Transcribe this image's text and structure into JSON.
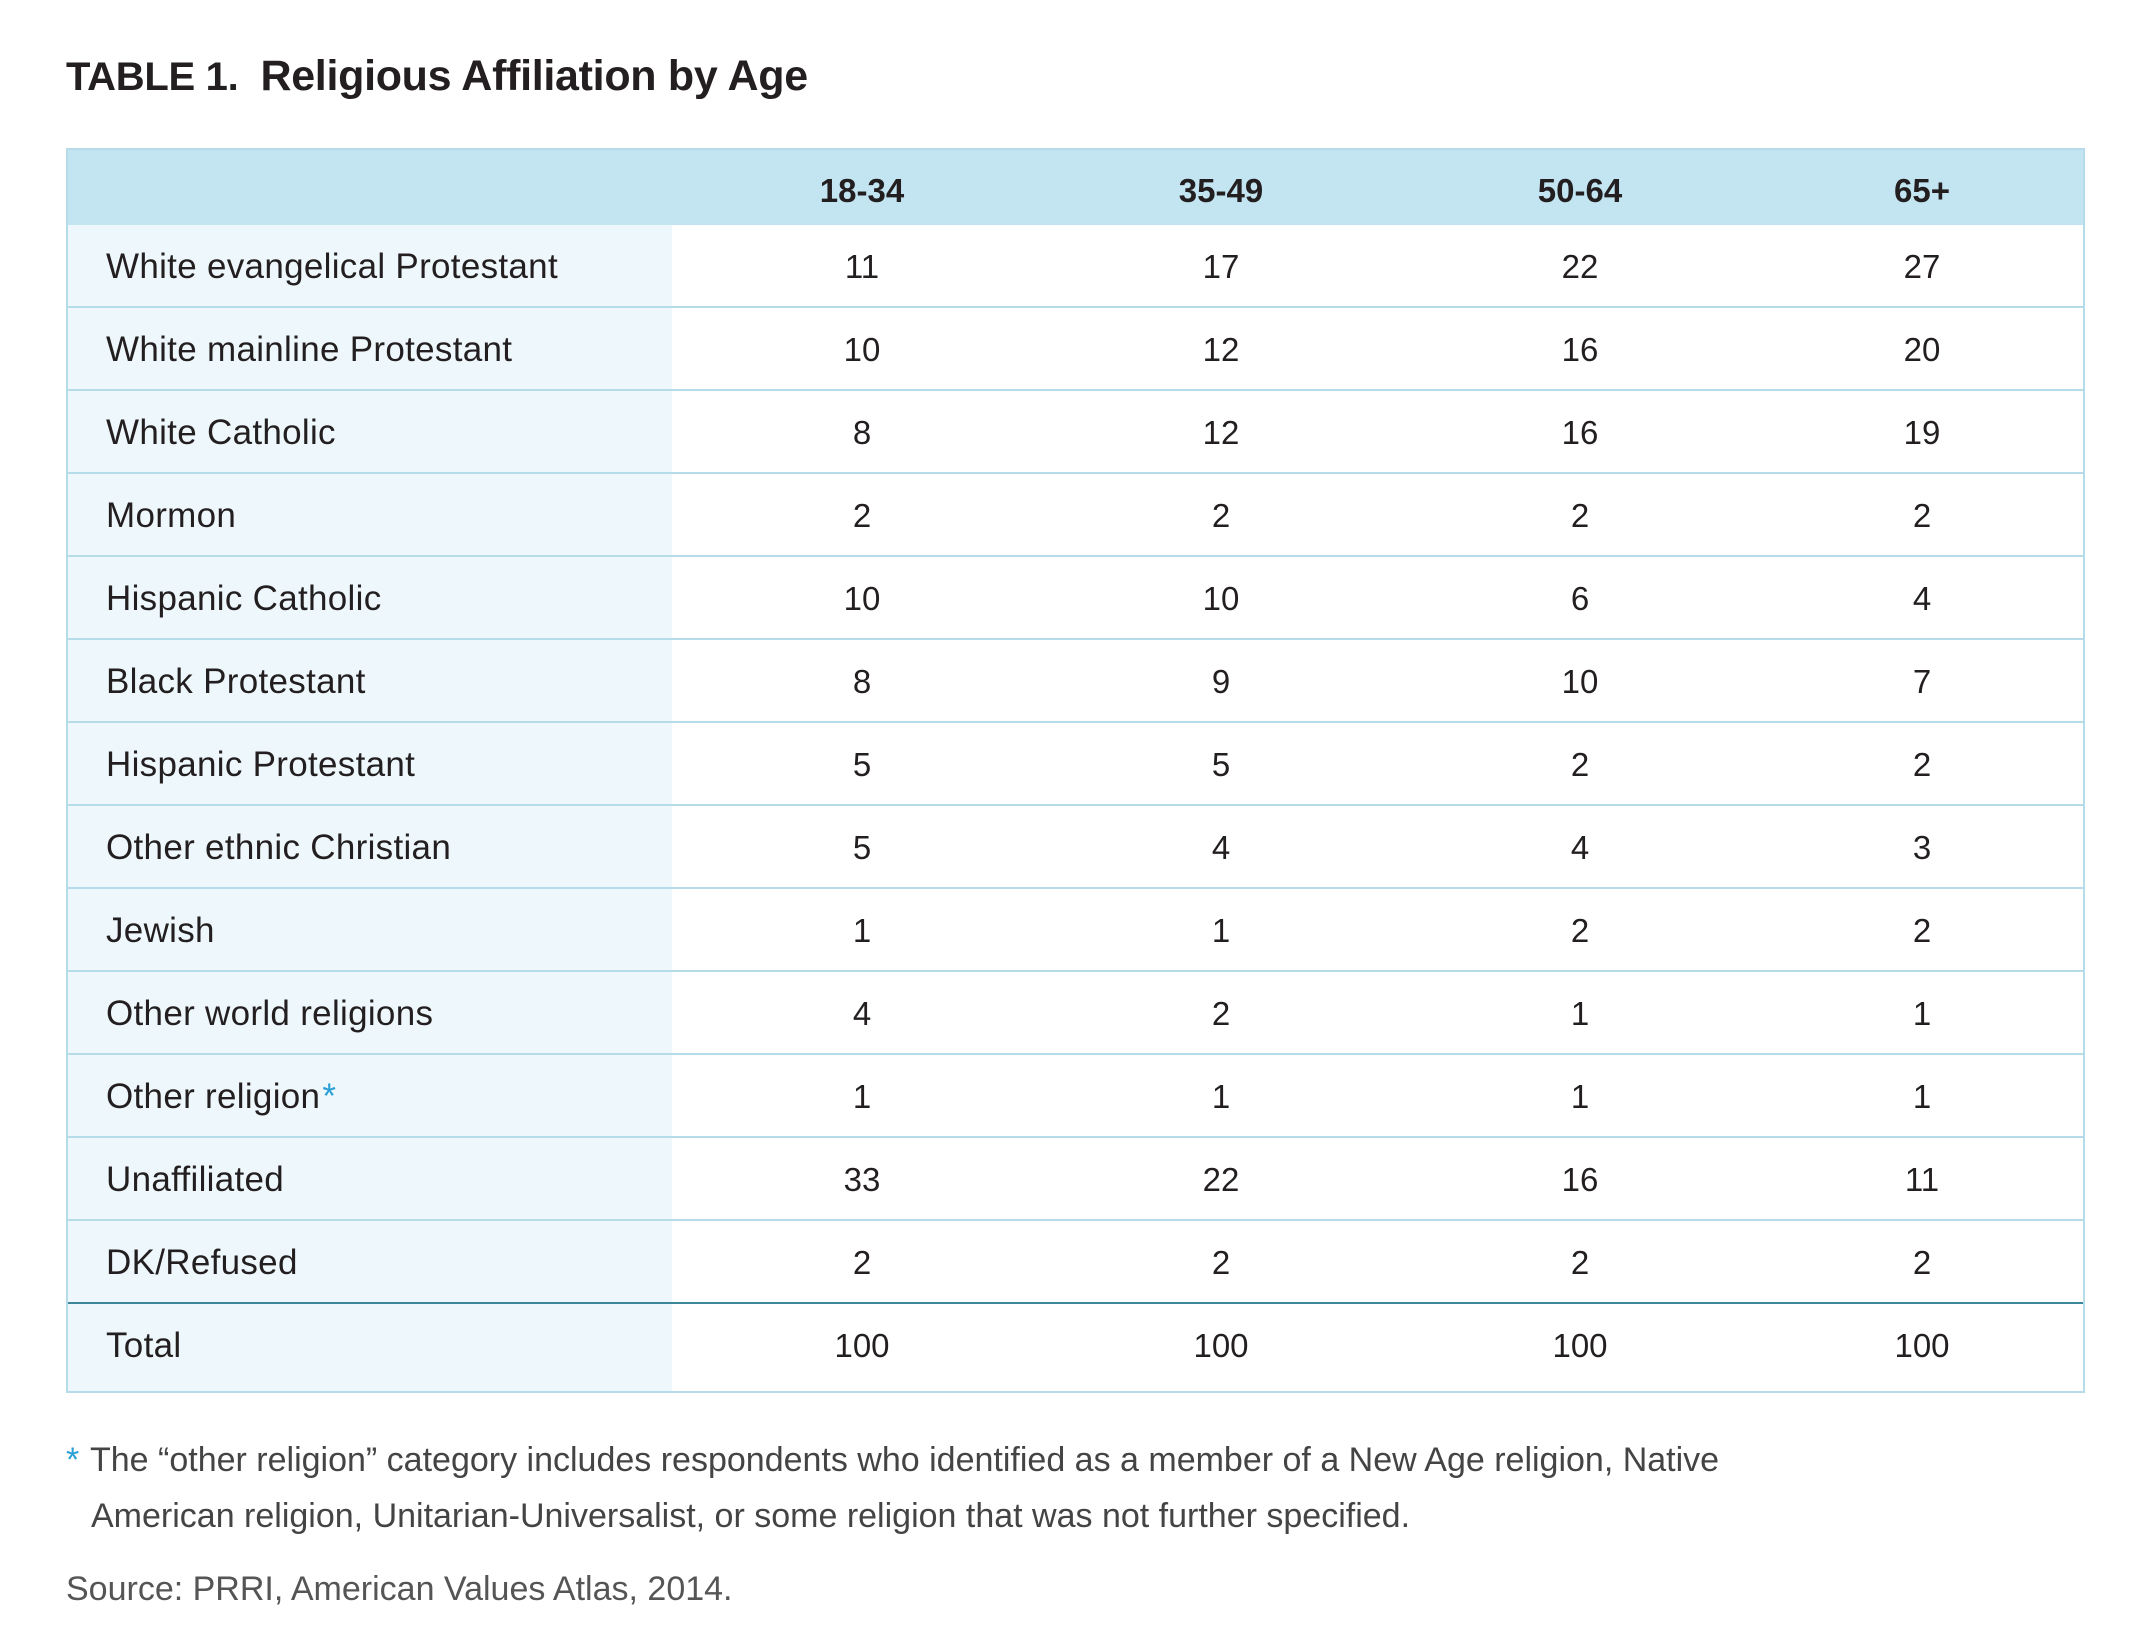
{
  "title": {
    "label": "TABLE 1.",
    "text": "Religious Affiliation by Age"
  },
  "chart_data": {
    "type": "table",
    "columns": [
      "18-34",
      "35-49",
      "50-64",
      "65+"
    ],
    "rows": [
      {
        "label": "White evangelical Protestant",
        "values": [
          "11",
          "17",
          "22",
          "27"
        ]
      },
      {
        "label": "White mainline Protestant",
        "values": [
          "10",
          "12",
          "16",
          "20"
        ]
      },
      {
        "label": "White Catholic",
        "values": [
          "8",
          "12",
          "16",
          "19"
        ]
      },
      {
        "label": "Mormon",
        "values": [
          "2",
          "2",
          "2",
          "2"
        ]
      },
      {
        "label": "Hispanic Catholic",
        "values": [
          "10",
          "10",
          "6",
          "4"
        ]
      },
      {
        "label": "Black Protestant",
        "values": [
          "8",
          "9",
          "10",
          "7"
        ]
      },
      {
        "label": "Hispanic Protestant",
        "values": [
          "5",
          "5",
          "2",
          "2"
        ]
      },
      {
        "label": "Other ethnic Christian",
        "values": [
          "5",
          "4",
          "4",
          "3"
        ]
      },
      {
        "label": "Jewish",
        "values": [
          "1",
          "1",
          "2",
          "2"
        ]
      },
      {
        "label": "Other world religions",
        "values": [
          "4",
          "2",
          "1",
          "1"
        ]
      },
      {
        "label": "Other religion",
        "marker": "*",
        "values": [
          "1",
          "1",
          "1",
          "1"
        ]
      },
      {
        "label": "Unaffiliated",
        "values": [
          "33",
          "22",
          "16",
          "11"
        ]
      },
      {
        "label": "DK/Refused",
        "values": [
          "2",
          "2",
          "2",
          "2"
        ]
      },
      {
        "label": "Total",
        "values": [
          "100",
          "100",
          "100",
          "100"
        ]
      }
    ]
  },
  "footnote": {
    "marker": "*",
    "line1": "The “other religion” category includes respondents who identified as a member of a New Age religion, Native",
    "line2": "American religion, Unitarian-Universalist, or some religion that was not further specified."
  },
  "source": "Source: PRRI, American Values Atlas, 2014.",
  "colors": {
    "header_bg": "#c3e5f2",
    "stub_bg": "#eef7fb",
    "grid_line": "#b6dcea",
    "total_separator": "#3b8799",
    "footnote_marker": "#2a9fd6"
  }
}
